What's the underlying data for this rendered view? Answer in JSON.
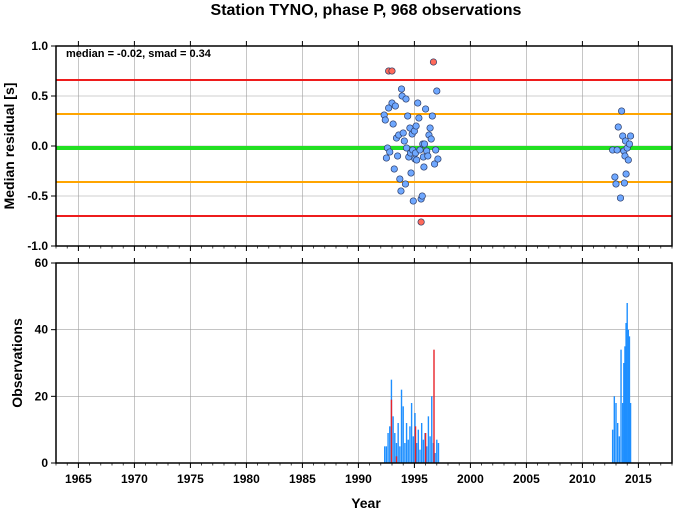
{
  "chart_data": [
    {
      "type": "scatter",
      "title": "Station TYNO, phase P, 968 observations",
      "xlabel": "",
      "ylabel": "Median residual [s]",
      "annotation": "median = -0.02, smad = 0.34",
      "xlim": [
        1963,
        2018
      ],
      "ylim": [
        -1.0,
        1.0
      ],
      "y_ticks": [
        "-1.0",
        "-0.5",
        "0.0",
        "0.5",
        "1.0"
      ],
      "x_ticks": [
        1965,
        1970,
        1975,
        1980,
        1985,
        1990,
        1995,
        2000,
        2005,
        2010,
        2015
      ],
      "grid": true,
      "reference_lines": [
        {
          "y": 0.66,
          "color": "#ee1c1c"
        },
        {
          "y": 0.32,
          "color": "#ffa500"
        },
        {
          "y": -0.02,
          "color": "#22e022"
        },
        {
          "y": -0.36,
          "color": "#ffa500"
        },
        {
          "y": -0.7,
          "color": "#ee1c1c"
        }
      ],
      "colors": {
        "normal": "#6fa8ff",
        "outlier": "#ff6a5a"
      },
      "series": [
        {
          "role": "normal",
          "points": [
            {
              "x": 1992.3,
              "y": 0.31
            },
            {
              "x": 1992.4,
              "y": 0.26
            },
            {
              "x": 1992.5,
              "y": -0.12
            },
            {
              "x": 1992.6,
              "y": -0.02
            },
            {
              "x": 1992.7,
              "y": 0.38
            },
            {
              "x": 1992.8,
              "y": -0.06
            },
            {
              "x": 1993.0,
              "y": 0.43
            },
            {
              "x": 1993.1,
              "y": 0.22
            },
            {
              "x": 1993.2,
              "y": -0.23
            },
            {
              "x": 1993.3,
              "y": 0.4
            },
            {
              "x": 1993.4,
              "y": 0.08
            },
            {
              "x": 1993.5,
              "y": -0.1
            },
            {
              "x": 1993.6,
              "y": 0.11
            },
            {
              "x": 1993.7,
              "y": -0.33
            },
            {
              "x": 1993.8,
              "y": -0.45
            },
            {
              "x": 1993.85,
              "y": 0.57
            },
            {
              "x": 1993.9,
              "y": 0.5
            },
            {
              "x": 1994.0,
              "y": 0.13
            },
            {
              "x": 1994.1,
              "y": 0.05
            },
            {
              "x": 1994.2,
              "y": -0.38
            },
            {
              "x": 1994.25,
              "y": 0.47
            },
            {
              "x": 1994.3,
              "y": -0.02
            },
            {
              "x": 1994.4,
              "y": 0.3
            },
            {
              "x": 1994.5,
              "y": -0.11
            },
            {
              "x": 1994.6,
              "y": 0.18
            },
            {
              "x": 1994.65,
              "y": -0.07
            },
            {
              "x": 1994.7,
              "y": -0.27
            },
            {
              "x": 1994.8,
              "y": 0.12
            },
            {
              "x": 1994.85,
              "y": -0.04
            },
            {
              "x": 1994.9,
              "y": -0.55
            },
            {
              "x": 1995.0,
              "y": 0.15
            },
            {
              "x": 1995.05,
              "y": -0.13
            },
            {
              "x": 1995.1,
              "y": -0.07
            },
            {
              "x": 1995.15,
              "y": 0.2
            },
            {
              "x": 1995.2,
              "y": -0.14
            },
            {
              "x": 1995.3,
              "y": 0.43
            },
            {
              "x": 1995.4,
              "y": 0.28
            },
            {
              "x": 1995.5,
              "y": -0.04
            },
            {
              "x": 1995.6,
              "y": -0.53
            },
            {
              "x": 1995.7,
              "y": -0.5
            },
            {
              "x": 1995.75,
              "y": 0.02
            },
            {
              "x": 1995.8,
              "y": -0.11
            },
            {
              "x": 1995.85,
              "y": -0.21
            },
            {
              "x": 1995.9,
              "y": 0.02
            },
            {
              "x": 1996.0,
              "y": 0.37
            },
            {
              "x": 1996.1,
              "y": -0.05
            },
            {
              "x": 1996.2,
              "y": -0.1
            },
            {
              "x": 1996.3,
              "y": 0.11
            },
            {
              "x": 1996.4,
              "y": 0.18
            },
            {
              "x": 1996.5,
              "y": 0.07
            },
            {
              "x": 1996.6,
              "y": 0.3
            },
            {
              "x": 1996.8,
              "y": -0.18
            },
            {
              "x": 1996.9,
              "y": -0.04
            },
            {
              "x": 1997.0,
              "y": 0.55
            },
            {
              "x": 1997.1,
              "y": -0.13
            },
            {
              "x": 2012.7,
              "y": -0.04
            },
            {
              "x": 2012.9,
              "y": -0.31
            },
            {
              "x": 2013.0,
              "y": -0.38
            },
            {
              "x": 2013.1,
              "y": -0.04
            },
            {
              "x": 2013.2,
              "y": 0.19
            },
            {
              "x": 2013.4,
              "y": -0.52
            },
            {
              "x": 2013.5,
              "y": 0.35
            },
            {
              "x": 2013.6,
              "y": 0.1
            },
            {
              "x": 2013.7,
              "y": -0.05
            },
            {
              "x": 2013.75,
              "y": -0.37
            },
            {
              "x": 2013.8,
              "y": -0.1
            },
            {
              "x": 2013.85,
              "y": 0.05
            },
            {
              "x": 2013.9,
              "y": -0.28
            },
            {
              "x": 2014.0,
              "y": -0.02
            },
            {
              "x": 2014.1,
              "y": -0.14
            },
            {
              "x": 2014.2,
              "y": 0.02
            },
            {
              "x": 2014.3,
              "y": 0.1
            }
          ]
        },
        {
          "role": "outlier",
          "points": [
            {
              "x": 1992.7,
              "y": 0.75
            },
            {
              "x": 1993.0,
              "y": 0.75
            },
            {
              "x": 1996.7,
              "y": 0.84
            },
            {
              "x": 1995.6,
              "y": -0.76
            }
          ]
        }
      ]
    },
    {
      "type": "bar",
      "xlabel": "Year",
      "ylabel": "Observations",
      "xlim": [
        1963,
        2018
      ],
      "ylim": [
        0,
        60
      ],
      "y_ticks": [
        "0",
        "20",
        "40",
        "60"
      ],
      "x_ticks": [
        1965,
        1970,
        1975,
        1980,
        1985,
        1990,
        1995,
        2000,
        2005,
        2010,
        2015
      ],
      "grid": true,
      "colors": {
        "normal": "#1e8fff",
        "outlier": "#e8232a"
      },
      "bars": [
        {
          "x": 1992.35,
          "v": 5
        },
        {
          "x": 1992.5,
          "v": 5
        },
        {
          "x": 1992.65,
          "v": 9
        },
        {
          "x": 1992.8,
          "v": 11
        },
        {
          "x": 1992.95,
          "v": 25
        },
        {
          "x": 1993.1,
          "v": 14
        },
        {
          "x": 1993.25,
          "v": 9
        },
        {
          "x": 1993.4,
          "v": 6
        },
        {
          "x": 1993.55,
          "v": 12
        },
        {
          "x": 1993.7,
          "v": 5
        },
        {
          "x": 1993.85,
          "v": 22
        },
        {
          "x": 1994.0,
          "v": 17
        },
        {
          "x": 1994.15,
          "v": 6
        },
        {
          "x": 1994.3,
          "v": 12
        },
        {
          "x": 1994.45,
          "v": 7
        },
        {
          "x": 1994.6,
          "v": 11
        },
        {
          "x": 1994.75,
          "v": 18
        },
        {
          "x": 1994.9,
          "v": 8
        },
        {
          "x": 1995.05,
          "v": 15
        },
        {
          "x": 1995.2,
          "v": 6
        },
        {
          "x": 1995.35,
          "v": 10
        },
        {
          "x": 1995.5,
          "v": 4
        },
        {
          "x": 1995.65,
          "v": 12
        },
        {
          "x": 1995.8,
          "v": 7
        },
        {
          "x": 1995.95,
          "v": 9
        },
        {
          "x": 1996.1,
          "v": 5
        },
        {
          "x": 1996.25,
          "v": 14
        },
        {
          "x": 1996.4,
          "v": 8
        },
        {
          "x": 1996.55,
          "v": 20
        },
        {
          "x": 1996.7,
          "v": 6
        },
        {
          "x": 1996.85,
          "v": 3
        },
        {
          "x": 1997.0,
          "v": 7
        },
        {
          "x": 1997.15,
          "v": 6
        },
        {
          "x": 2012.7,
          "v": 10
        },
        {
          "x": 2012.85,
          "v": 20
        },
        {
          "x": 2013.0,
          "v": 18
        },
        {
          "x": 2013.15,
          "v": 12
        },
        {
          "x": 2013.3,
          "v": 8
        },
        {
          "x": 2013.45,
          "v": 34
        },
        {
          "x": 2013.6,
          "v": 18
        },
        {
          "x": 2013.7,
          "v": 30
        },
        {
          "x": 2013.8,
          "v": 35
        },
        {
          "x": 2013.9,
          "v": 42
        },
        {
          "x": 2014.0,
          "v": 48
        },
        {
          "x": 2014.1,
          "v": 40
        },
        {
          "x": 2014.2,
          "v": 38
        },
        {
          "x": 2014.3,
          "v": 18
        }
      ],
      "red_bars": [
        {
          "x": 1992.95,
          "v": 19
        },
        {
          "x": 1993.4,
          "v": 2
        },
        {
          "x": 1995.1,
          "v": 11
        },
        {
          "x": 1996.0,
          "v": 9
        },
        {
          "x": 1996.75,
          "v": 34
        }
      ]
    }
  ]
}
